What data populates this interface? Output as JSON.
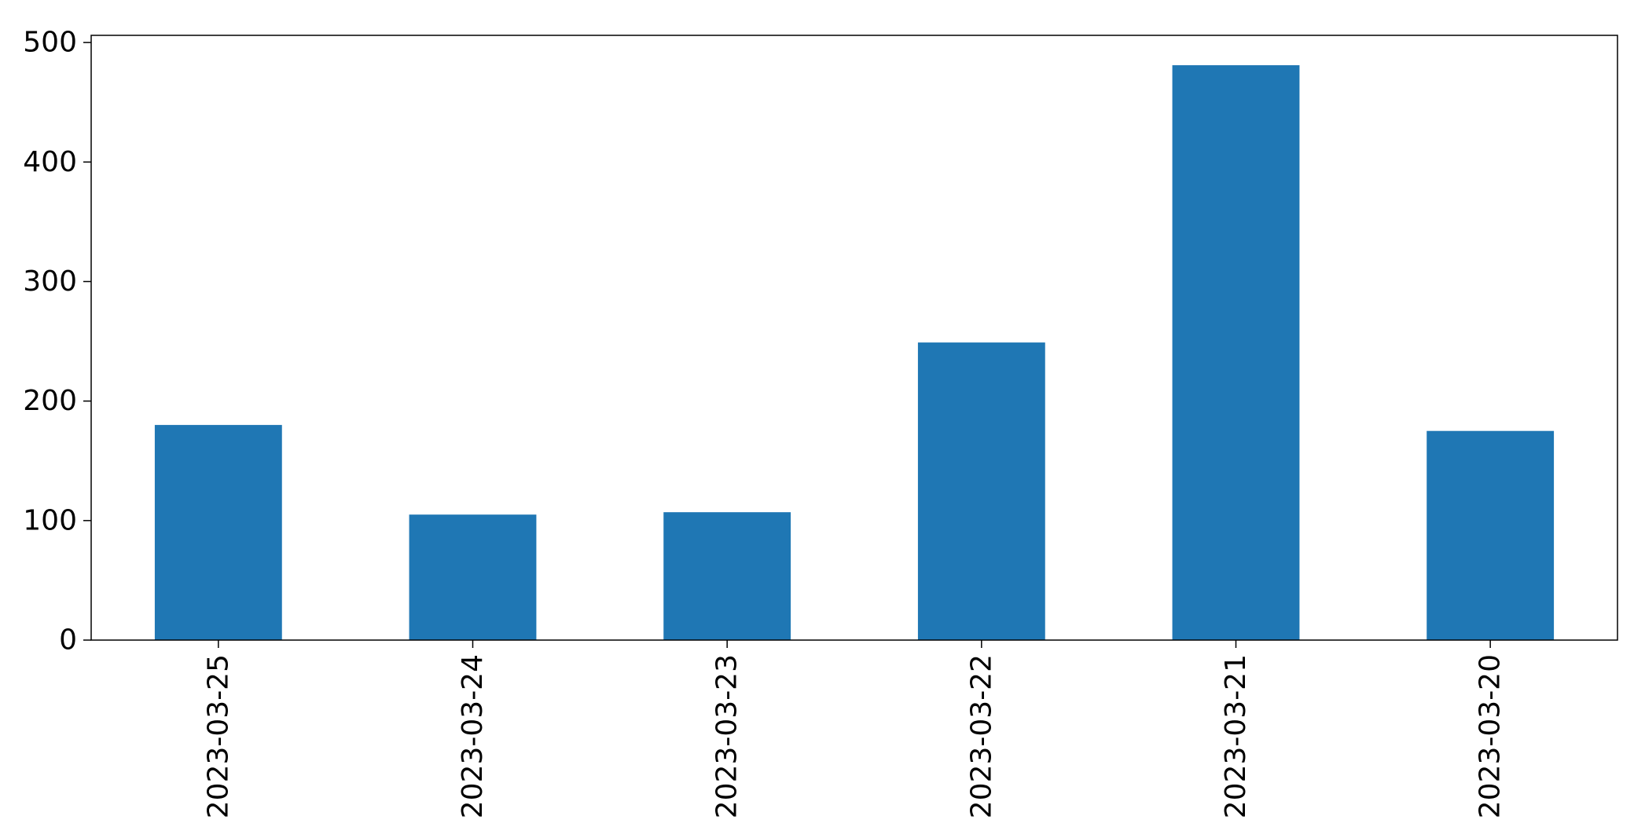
{
  "chart_data": {
    "type": "bar",
    "categories": [
      "2023-03-25",
      "2023-03-24",
      "2023-03-23",
      "2023-03-22",
      "2023-03-21",
      "2023-03-20"
    ],
    "values": [
      180,
      105,
      107,
      249,
      481,
      175
    ],
    "title": "",
    "xlabel": "",
    "ylabel": "",
    "ylim": [
      0,
      506
    ],
    "yticks": [
      0,
      100,
      200,
      300,
      400,
      500
    ],
    "grid": false,
    "legend": "none",
    "bar_color": "#1f77b4"
  }
}
